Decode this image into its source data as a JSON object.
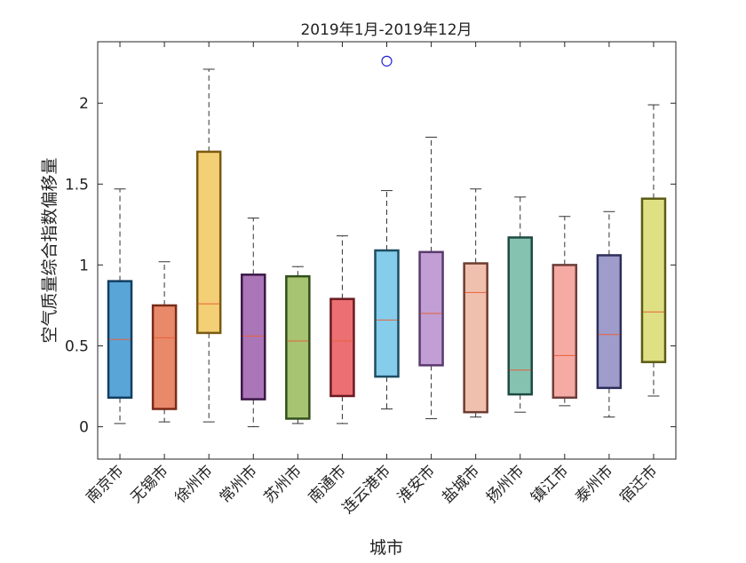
{
  "chart_data": {
    "type": "box",
    "title": "2019年1月-2019年12月",
    "xlabel": "城市",
    "ylabel": "空气质量综合指数偏移量",
    "ylim": [
      -0.2,
      2.38
    ],
    "yticks": [
      0,
      0.5,
      1,
      1.5,
      2
    ],
    "ytick_labels": [
      "0",
      "0.5",
      "1",
      "1.5",
      "2"
    ],
    "grid": false,
    "categories": [
      "南京市",
      "无锡市",
      "徐州市",
      "常州市",
      "苏州市",
      "南通市",
      "连云港市",
      "淮安市",
      "盐城市",
      "扬州市",
      "镇江市",
      "泰州市",
      "宿迁市"
    ],
    "boxes": [
      {
        "min": 0.02,
        "q1": 0.18,
        "median": 0.54,
        "q3": 0.9,
        "max": 1.47,
        "fill": "#5aa5d8",
        "edge": "#123f62",
        "outliers": []
      },
      {
        "min": 0.03,
        "q1": 0.11,
        "median": 0.55,
        "q3": 0.75,
        "max": 1.02,
        "fill": "#e8896a",
        "edge": "#7a2b17",
        "outliers": []
      },
      {
        "min": 0.03,
        "q1": 0.58,
        "median": 0.76,
        "q3": 1.7,
        "max": 2.21,
        "fill": "#f3cf76",
        "edge": "#7a5b12",
        "outliers": []
      },
      {
        "min": 0.0,
        "q1": 0.17,
        "median": 0.56,
        "q3": 0.94,
        "max": 1.29,
        "fill": "#aa76b7",
        "edge": "#3b1848",
        "outliers": []
      },
      {
        "min": 0.02,
        "q1": 0.05,
        "median": 0.53,
        "q3": 0.93,
        "max": 0.99,
        "fill": "#a6c472",
        "edge": "#33501a",
        "outliers": []
      },
      {
        "min": 0.02,
        "q1": 0.19,
        "median": 0.53,
        "q3": 0.79,
        "max": 1.18,
        "fill": "#ec6f74",
        "edge": "#6a1a20",
        "outliers": []
      },
      {
        "min": 0.11,
        "q1": 0.31,
        "median": 0.66,
        "q3": 1.09,
        "max": 1.46,
        "fill": "#85cdeb",
        "edge": "#1f4d63",
        "outliers": [
          2.26
        ]
      },
      {
        "min": 0.05,
        "q1": 0.38,
        "median": 0.7,
        "q3": 1.08,
        "max": 1.79,
        "fill": "#c19fd4",
        "edge": "#5a3a6e",
        "outliers": []
      },
      {
        "min": 0.06,
        "q1": 0.09,
        "median": 0.83,
        "q3": 1.01,
        "max": 1.47,
        "fill": "#f0c0ae",
        "edge": "#6e3d30",
        "outliers": []
      },
      {
        "min": 0.09,
        "q1": 0.2,
        "median": 0.35,
        "q3": 1.17,
        "max": 1.42,
        "fill": "#85c2b0",
        "edge": "#1f4a43",
        "outliers": []
      },
      {
        "min": 0.13,
        "q1": 0.18,
        "median": 0.44,
        "q3": 1.0,
        "max": 1.3,
        "fill": "#f6aaa4",
        "edge": "#6e3d3a",
        "outliers": []
      },
      {
        "min": 0.06,
        "q1": 0.24,
        "median": 0.57,
        "q3": 1.06,
        "max": 1.33,
        "fill": "#9f9ccc",
        "edge": "#2d2f5a",
        "outliers": []
      },
      {
        "min": 0.19,
        "q1": 0.4,
        "median": 0.71,
        "q3": 1.41,
        "max": 1.99,
        "fill": "#dfe083",
        "edge": "#5b5b16",
        "outliers": []
      }
    ],
    "median_color": "#e8613a",
    "outlier_color": "#1f1fd6"
  }
}
